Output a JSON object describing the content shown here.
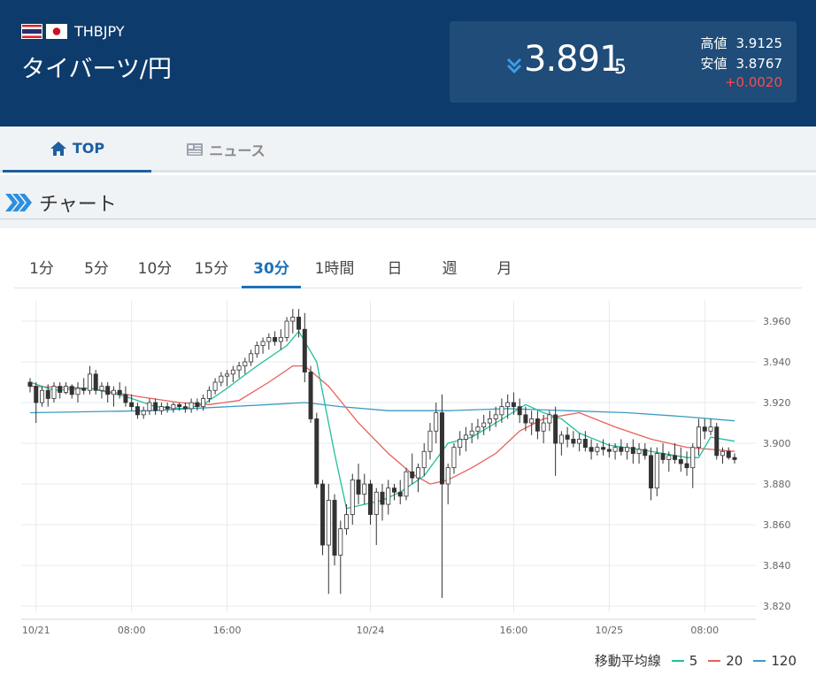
{
  "header": {
    "pair_code": "THBJPY",
    "pair_name": "タイバーツ/円",
    "price_main": "3.891",
    "price_small": "5",
    "high_label": "高値",
    "high_value": "3.9125",
    "low_label": "安値",
    "low_value": "3.8767",
    "change": "+0.0020",
    "colors": {
      "header_bg": "#0d3b6b",
      "box_bg": "#1f4c78",
      "change": "#ff4a4a",
      "arrow": "#3b9ce6"
    }
  },
  "tabs": [
    {
      "label": "TOP",
      "icon": "home-icon",
      "active": true
    },
    {
      "label": "ニュース",
      "icon": "newspaper-icon",
      "active": false
    }
  ],
  "section": {
    "title": "チャート",
    "icon": "chevrons-icon"
  },
  "periods": [
    {
      "label": "1分",
      "active": false
    },
    {
      "label": "5分",
      "active": false
    },
    {
      "label": "10分",
      "active": false
    },
    {
      "label": "15分",
      "active": false
    },
    {
      "label": "30分",
      "active": true
    },
    {
      "label": "1時間",
      "active": false
    },
    {
      "label": "日",
      "active": false
    },
    {
      "label": "週",
      "active": false
    },
    {
      "label": "月",
      "active": false
    }
  ],
  "legend": {
    "title": "移動平均線",
    "items": [
      {
        "label": "5",
        "color": "#1fbf9c"
      },
      {
        "label": "20",
        "color": "#e8605a"
      },
      {
        "label": "120",
        "color": "#3a9bc1"
      }
    ]
  },
  "chart_data": {
    "type": "candlestick",
    "y_ticks": [
      "3.960",
      "3.940",
      "3.920",
      "3.900",
      "3.880",
      "3.860",
      "3.840",
      "3.820"
    ],
    "ylim": [
      3.817,
      3.97
    ],
    "x_ticks": [
      {
        "label": "10/21",
        "i": 1
      },
      {
        "label": "08:00",
        "i": 17
      },
      {
        "label": "16:00",
        "i": 33
      },
      {
        "label": "10/24",
        "i": 57
      },
      {
        "label": "16:00",
        "i": 81
      },
      {
        "label": "10/25",
        "i": 97
      },
      {
        "label": "08:00",
        "i": 113
      }
    ],
    "candle_count": 119,
    "candles": [
      [
        3.93,
        3.932,
        3.925,
        3.928
      ],
      [
        3.928,
        3.93,
        3.91,
        3.92
      ],
      [
        3.92,
        3.928,
        3.918,
        3.926
      ],
      [
        3.926,
        3.929,
        3.918,
        3.922
      ],
      [
        3.922,
        3.93,
        3.92,
        3.928
      ],
      [
        3.928,
        3.93,
        3.922,
        3.925
      ],
      [
        3.925,
        3.93,
        3.924,
        3.928
      ],
      [
        3.928,
        3.929,
        3.922,
        3.924
      ],
      [
        3.924,
        3.93,
        3.92,
        3.927
      ],
      [
        3.927,
        3.932,
        3.924,
        3.926
      ],
      [
        3.926,
        3.938,
        3.924,
        3.934
      ],
      [
        3.934,
        3.936,
        3.924,
        3.926
      ],
      [
        3.926,
        3.93,
        3.922,
        3.928
      ],
      [
        3.928,
        3.93,
        3.92,
        3.924
      ],
      [
        3.924,
        3.928,
        3.918,
        3.926
      ],
      [
        3.926,
        3.93,
        3.922,
        3.924
      ],
      [
        3.924,
        3.928,
        3.918,
        3.92
      ],
      [
        3.92,
        3.924,
        3.916,
        3.918
      ],
      [
        3.918,
        3.92,
        3.912,
        3.914
      ],
      [
        3.914,
        3.918,
        3.912,
        3.916
      ],
      [
        3.916,
        3.922,
        3.914,
        3.92
      ],
      [
        3.92,
        3.922,
        3.914,
        3.916
      ],
      [
        3.916,
        3.92,
        3.914,
        3.918
      ],
      [
        3.918,
        3.92,
        3.915,
        3.917
      ],
      [
        3.917,
        3.92,
        3.915,
        3.919
      ],
      [
        3.919,
        3.92,
        3.916,
        3.918
      ],
      [
        3.918,
        3.92,
        3.915,
        3.917
      ],
      [
        3.917,
        3.922,
        3.915,
        3.92
      ],
      [
        3.92,
        3.922,
        3.916,
        3.918
      ],
      [
        3.918,
        3.924,
        3.916,
        3.922
      ],
      [
        3.922,
        3.928,
        3.92,
        3.926
      ],
      [
        3.926,
        3.932,
        3.924,
        3.93
      ],
      [
        3.93,
        3.935,
        3.928,
        3.933
      ],
      [
        3.933,
        3.936,
        3.928,
        3.934
      ],
      [
        3.934,
        3.938,
        3.93,
        3.936
      ],
      [
        3.936,
        3.94,
        3.932,
        3.938
      ],
      [
        3.938,
        3.942,
        3.934,
        3.94
      ],
      [
        3.94,
        3.946,
        3.938,
        3.944
      ],
      [
        3.944,
        3.95,
        3.942,
        3.948
      ],
      [
        3.948,
        3.952,
        3.944,
        3.95
      ],
      [
        3.95,
        3.954,
        3.946,
        3.952
      ],
      [
        3.952,
        3.955,
        3.948,
        3.95
      ],
      [
        3.95,
        3.956,
        3.946,
        3.952
      ],
      [
        3.952,
        3.962,
        3.95,
        3.96
      ],
      [
        3.96,
        3.966,
        3.954,
        3.962
      ],
      [
        3.962,
        3.966,
        3.952,
        3.956
      ],
      [
        3.956,
        3.964,
        3.93,
        3.935
      ],
      [
        3.935,
        3.938,
        3.91,
        3.912
      ],
      [
        3.912,
        3.915,
        3.878,
        3.88
      ],
      [
        3.88,
        3.882,
        3.845,
        3.85
      ],
      [
        3.85,
        3.88,
        3.826,
        3.872
      ],
      [
        3.872,
        3.875,
        3.84,
        3.845
      ],
      [
        3.845,
        3.862,
        3.826,
        3.858
      ],
      [
        3.858,
        3.87,
        3.855,
        3.865
      ],
      [
        3.865,
        3.885,
        3.86,
        3.882
      ],
      [
        3.882,
        3.89,
        3.87,
        3.875
      ],
      [
        3.875,
        3.885,
        3.87,
        3.88
      ],
      [
        3.88,
        3.882,
        3.86,
        3.865
      ],
      [
        3.865,
        3.878,
        3.85,
        3.876
      ],
      [
        3.876,
        3.88,
        3.862,
        3.87
      ],
      [
        3.87,
        3.882,
        3.865,
        3.878
      ],
      [
        3.878,
        3.88,
        3.872,
        3.876
      ],
      [
        3.876,
        3.882,
        3.87,
        3.874
      ],
      [
        3.874,
        3.888,
        3.872,
        3.886
      ],
      [
        3.886,
        3.895,
        3.88,
        3.883
      ],
      [
        3.883,
        3.89,
        3.876,
        3.888
      ],
      [
        3.888,
        3.9,
        3.884,
        3.896
      ],
      [
        3.896,
        3.91,
        3.892,
        3.906
      ],
      [
        3.906,
        3.92,
        3.9,
        3.915
      ],
      [
        3.915,
        3.924,
        3.824,
        3.88
      ],
      [
        3.88,
        3.89,
        3.87,
        3.888
      ],
      [
        3.888,
        3.9,
        3.885,
        3.898
      ],
      [
        3.898,
        3.906,
        3.894,
        3.902
      ],
      [
        3.902,
        3.908,
        3.896,
        3.904
      ],
      [
        3.904,
        3.91,
        3.9,
        3.906
      ],
      [
        3.906,
        3.912,
        3.902,
        3.908
      ],
      [
        3.908,
        3.914,
        3.904,
        3.91
      ],
      [
        3.91,
        3.916,
        3.906,
        3.912
      ],
      [
        3.912,
        3.918,
        3.908,
        3.914
      ],
      [
        3.914,
        3.922,
        3.91,
        3.918
      ],
      [
        3.918,
        3.924,
        3.912,
        3.92
      ],
      [
        3.92,
        3.925,
        3.914,
        3.918
      ],
      [
        3.918,
        3.922,
        3.91,
        3.914
      ],
      [
        3.914,
        3.918,
        3.906,
        3.91
      ],
      [
        3.91,
        3.916,
        3.904,
        3.912
      ],
      [
        3.912,
        3.916,
        3.902,
        3.906
      ],
      [
        3.906,
        3.914,
        3.9,
        3.91
      ],
      [
        3.91,
        3.916,
        3.906,
        3.914
      ],
      [
        3.914,
        3.918,
        3.884,
        3.9
      ],
      [
        3.9,
        3.906,
        3.894,
        3.904
      ],
      [
        3.904,
        3.908,
        3.898,
        3.902
      ],
      [
        3.902,
        3.906,
        3.898,
        3.9
      ],
      [
        3.9,
        3.905,
        3.896,
        3.902
      ],
      [
        3.902,
        3.906,
        3.896,
        3.898
      ],
      [
        3.898,
        3.902,
        3.892,
        3.896
      ],
      [
        3.896,
        3.9,
        3.894,
        3.898
      ],
      [
        3.898,
        3.902,
        3.894,
        3.897
      ],
      [
        3.897,
        3.9,
        3.893,
        3.896
      ],
      [
        3.896,
        3.9,
        3.892,
        3.898
      ],
      [
        3.898,
        3.902,
        3.894,
        3.896
      ],
      [
        3.896,
        3.9,
        3.892,
        3.898
      ],
      [
        3.898,
        3.902,
        3.89,
        3.895
      ],
      [
        3.895,
        3.9,
        3.89,
        3.897
      ],
      [
        3.897,
        3.9,
        3.892,
        3.894
      ],
      [
        3.894,
        3.898,
        3.872,
        3.878
      ],
      [
        3.878,
        3.898,
        3.874,
        3.895
      ],
      [
        3.895,
        3.9,
        3.89,
        3.892
      ],
      [
        3.892,
        3.896,
        3.886,
        3.894
      ],
      [
        3.894,
        3.9,
        3.89,
        3.892
      ],
      [
        3.892,
        3.898,
        3.886,
        3.89
      ],
      [
        3.89,
        3.896,
        3.884,
        3.888
      ],
      [
        3.888,
        3.9,
        3.878,
        3.898
      ],
      [
        3.898,
        3.912,
        3.894,
        3.908
      ],
      [
        3.908,
        3.912,
        3.902,
        3.906
      ],
      [
        3.906,
        3.912,
        3.904,
        3.908
      ],
      [
        3.908,
        3.91,
        3.892,
        3.894
      ],
      [
        3.894,
        3.898,
        3.89,
        3.896
      ],
      [
        3.896,
        3.898,
        3.892,
        3.893
      ],
      [
        3.893,
        3.895,
        3.89,
        3.892
      ]
    ],
    "ma5": [
      [
        0,
        3.93
      ],
      [
        4,
        3.926
      ],
      [
        10,
        3.927
      ],
      [
        16,
        3.923
      ],
      [
        21,
        3.918
      ],
      [
        26,
        3.917
      ],
      [
        29,
        3.919
      ],
      [
        33,
        3.927
      ],
      [
        38,
        3.938
      ],
      [
        43,
        3.948
      ],
      [
        45,
        3.955
      ],
      [
        48,
        3.94
      ],
      [
        51,
        3.895
      ],
      [
        53,
        3.868
      ],
      [
        56,
        3.87
      ],
      [
        59,
        3.872
      ],
      [
        62,
        3.876
      ],
      [
        66,
        3.884
      ],
      [
        70,
        3.9
      ],
      [
        74,
        3.903
      ],
      [
        78,
        3.91
      ],
      [
        83,
        3.919
      ],
      [
        86,
        3.915
      ],
      [
        89,
        3.912
      ],
      [
        92,
        3.905
      ],
      [
        97,
        3.899
      ],
      [
        102,
        3.897
      ],
      [
        106,
        3.895
      ],
      [
        110,
        3.893
      ],
      [
        112,
        3.893
      ],
      [
        114,
        3.903
      ],
      [
        118,
        3.901
      ]
    ],
    "ma20": [
      [
        0,
        3.928
      ],
      [
        10,
        3.927
      ],
      [
        18,
        3.923
      ],
      [
        25,
        3.92
      ],
      [
        30,
        3.919
      ],
      [
        35,
        3.921
      ],
      [
        40,
        3.93
      ],
      [
        44,
        3.938
      ],
      [
        46,
        3.938
      ],
      [
        50,
        3.928
      ],
      [
        55,
        3.91
      ],
      [
        60,
        3.895
      ],
      [
        64,
        3.885
      ],
      [
        67,
        3.88
      ],
      [
        70,
        3.882
      ],
      [
        74,
        3.888
      ],
      [
        78,
        3.895
      ],
      [
        82,
        3.906
      ],
      [
        86,
        3.912
      ],
      [
        92,
        3.915
      ],
      [
        98,
        3.908
      ],
      [
        104,
        3.902
      ],
      [
        110,
        3.898
      ],
      [
        114,
        3.897
      ],
      [
        118,
        3.896
      ]
    ],
    "ma120": [
      [
        0,
        3.915
      ],
      [
        20,
        3.916
      ],
      [
        40,
        3.919
      ],
      [
        46,
        3.92
      ],
      [
        52,
        3.918
      ],
      [
        60,
        3.916
      ],
      [
        70,
        3.916
      ],
      [
        80,
        3.917
      ],
      [
        90,
        3.916
      ],
      [
        100,
        3.915
      ],
      [
        110,
        3.913
      ],
      [
        118,
        3.911
      ]
    ]
  }
}
